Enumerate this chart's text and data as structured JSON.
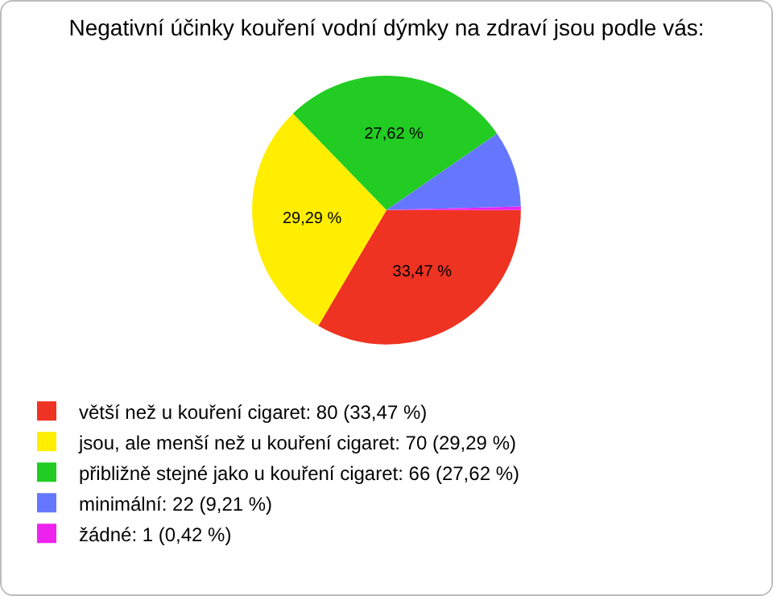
{
  "chart_data": {
    "type": "pie",
    "title": "Negativní účinky kouření vodní dýmky na zdraví jsou podle vás:",
    "categories": [
      "větší než u kouření cigaret: 80 (33,47 %)",
      "jsou, ale menší než u kouření cigaret: 70 (29,29 %)",
      "přibližně stejné jako u kouření cigaret: 66 (27,62 %)",
      "minimální: 22 (9,21 %)",
      "žádné: 1 (0,42 %)"
    ],
    "values": [
      33.47,
      29.29,
      27.62,
      9.21,
      0.42
    ],
    "value_labels": [
      "33,47 %",
      "29,29 %",
      "27,62 %",
      null,
      null
    ],
    "colors": [
      "#ee3322",
      "#ffee00",
      "#22cc22",
      "#6677ff",
      "#ee22ee"
    ],
    "legend": "bottom left"
  }
}
